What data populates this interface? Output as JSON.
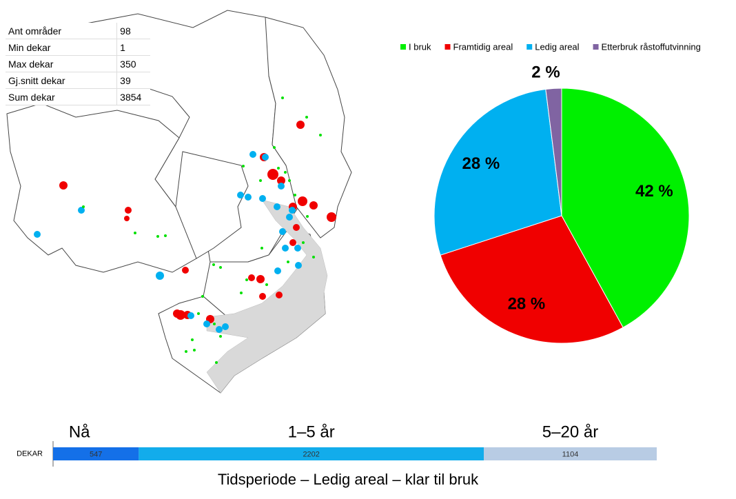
{
  "stats": {
    "rows": [
      [
        "Ant områder",
        98
      ],
      [
        "Min dekar",
        1
      ],
      [
        "Max dekar",
        350
      ],
      [
        "Gj.snitt dekar",
        39
      ],
      [
        "Sum dekar",
        3854
      ]
    ]
  },
  "chart_data": [
    {
      "type": "pie",
      "categories": [
        "I bruk",
        "Framtidig areal",
        "Ledig areal",
        "Etterbruk råstoffutvinning"
      ],
      "values": [
        42,
        28,
        28,
        2
      ],
      "value_labels": [
        "42 %",
        "28 %",
        "28 %",
        "2 %"
      ],
      "colors": [
        "#00f000",
        "#f00000",
        "#00b0f0",
        "#8064a2"
      ],
      "legend": "top"
    },
    {
      "type": "stacked-bar",
      "title": "Tidsperiode – Ledig areal – klar til bruk",
      "categories": [
        "DEKAR"
      ],
      "series": [
        {
          "name": "Nå",
          "color": "#1470e8",
          "values": [
            547
          ]
        },
        {
          "name": "1–5 år",
          "color": "#12aceb",
          "values": [
            2202
          ]
        },
        {
          "name": "5–20 år",
          "color": "#b8cce4",
          "values": [
            1104
          ]
        }
      ]
    }
  ]
}
